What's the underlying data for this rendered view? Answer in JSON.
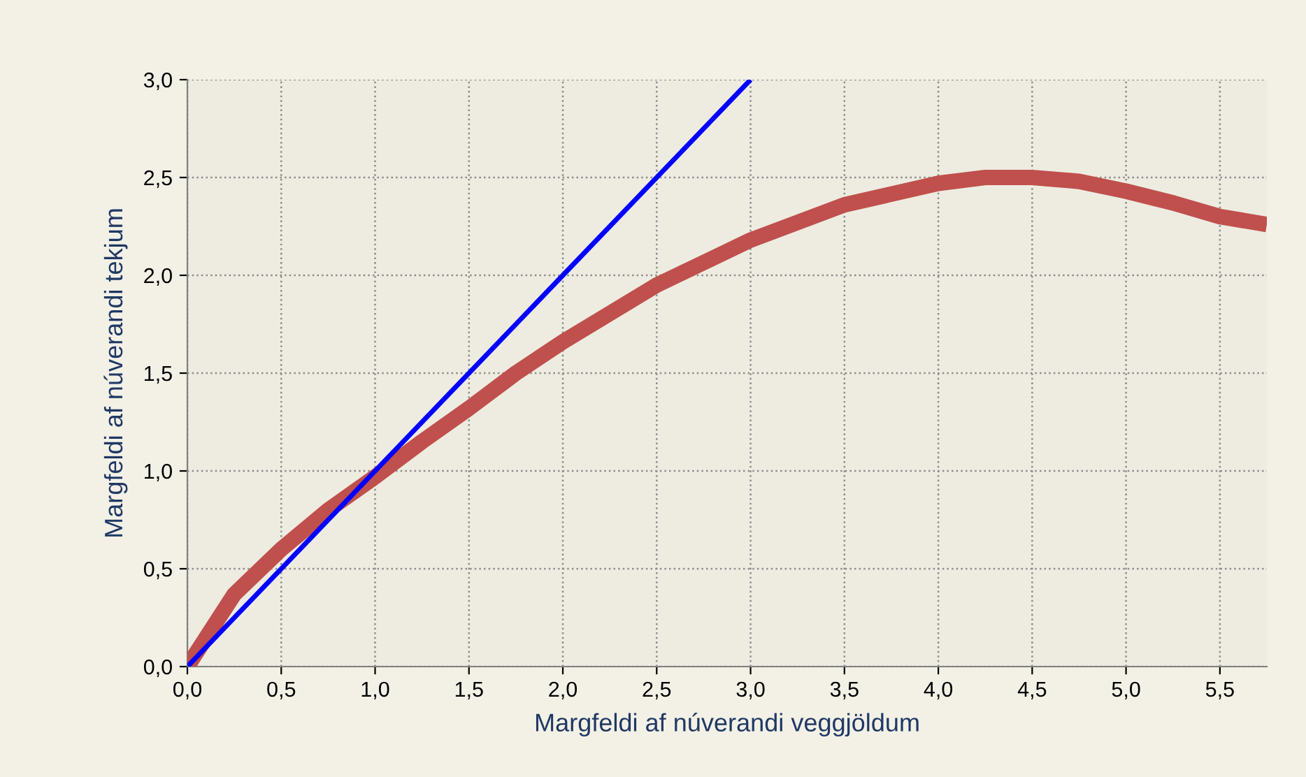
{
  "chart_data": {
    "type": "line",
    "xlabel": "Margfeldi af núverandi veggjöldum",
    "ylabel": "Margfeldi af núverandi tekjum",
    "xlim": [
      0,
      5.75
    ],
    "ylim": [
      0,
      3
    ],
    "xticks": [
      {
        "value": 0,
        "label": "0,0"
      },
      {
        "value": 0.5,
        "label": "0,5"
      },
      {
        "value": 1,
        "label": "1,0"
      },
      {
        "value": 1.5,
        "label": "1,5"
      },
      {
        "value": 2,
        "label": "2,0"
      },
      {
        "value": 2.5,
        "label": "2,5"
      },
      {
        "value": 3,
        "label": "3,0"
      },
      {
        "value": 3.5,
        "label": "3,5"
      },
      {
        "value": 4,
        "label": "4,0"
      },
      {
        "value": 4.5,
        "label": "4,5"
      },
      {
        "value": 5,
        "label": "5,0"
      },
      {
        "value": 5.5,
        "label": "5,5"
      }
    ],
    "yticks": [
      {
        "value": 0,
        "label": "0,0"
      },
      {
        "value": 0.5,
        "label": "0,5"
      },
      {
        "value": 1,
        "label": "1,0"
      },
      {
        "value": 1.5,
        "label": "1,5"
      },
      {
        "value": 2,
        "label": "2,0"
      },
      {
        "value": 2.5,
        "label": "2,5"
      },
      {
        "value": 3,
        "label": "3,0"
      }
    ],
    "grid": true,
    "marker": "none",
    "line_style": "solid",
    "series": [
      {
        "color": "#c0504d",
        "x": [
          0,
          0.25,
          0.5,
          0.75,
          1.0,
          1.25,
          1.5,
          1.75,
          2.0,
          2.5,
          3.0,
          3.5,
          4.0,
          4.25,
          4.5,
          4.75,
          5.0,
          5.25,
          5.5,
          5.75
        ],
        "values": [
          0,
          0.37,
          0.6,
          0.8,
          0.97,
          1.15,
          1.32,
          1.5,
          1.66,
          1.95,
          2.18,
          2.36,
          2.47,
          2.5,
          2.5,
          2.48,
          2.43,
          2.37,
          2.3,
          2.26
        ]
      },
      {
        "color": "#0000ff",
        "x": [
          0,
          3
        ],
        "values": [
          0,
          3
        ]
      }
    ]
  }
}
